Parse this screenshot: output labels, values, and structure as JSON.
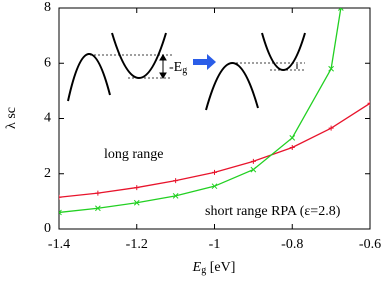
{
  "chart_data": {
    "type": "line",
    "xlabel": {
      "main": "E",
      "sub": "g",
      "unit": " [eV]"
    },
    "ylabel": "λ sc",
    "xlim": [
      -1.4,
      -0.6
    ],
    "ylim": [
      0,
      8
    ],
    "xticks": [
      -1.4,
      -1.2,
      -1,
      -0.8,
      -0.6
    ],
    "yticks": [
      0,
      2,
      4,
      6,
      8
    ],
    "series": [
      {
        "name": "long range",
        "color": "#e8142c",
        "x": [
          -1.4,
          -1.3,
          -1.2,
          -1.1,
          -1.0,
          -0.9,
          -0.8,
          -0.7,
          -0.6
        ],
        "values": [
          1.15,
          1.3,
          1.5,
          1.75,
          2.05,
          2.45,
          2.95,
          3.65,
          4.55
        ]
      },
      {
        "name": "short range RPA (ε=2.8)",
        "color": "#22d022",
        "x": [
          -1.4,
          -1.3,
          -1.2,
          -1.1,
          -1.0,
          -0.9,
          -0.8,
          -0.7,
          -0.675
        ],
        "values": [
          0.6,
          0.75,
          0.95,
          1.2,
          1.55,
          2.15,
          3.3,
          5.8,
          8
        ]
      }
    ],
    "inset_label": {
      "main": "-E",
      "sub": "g"
    }
  }
}
